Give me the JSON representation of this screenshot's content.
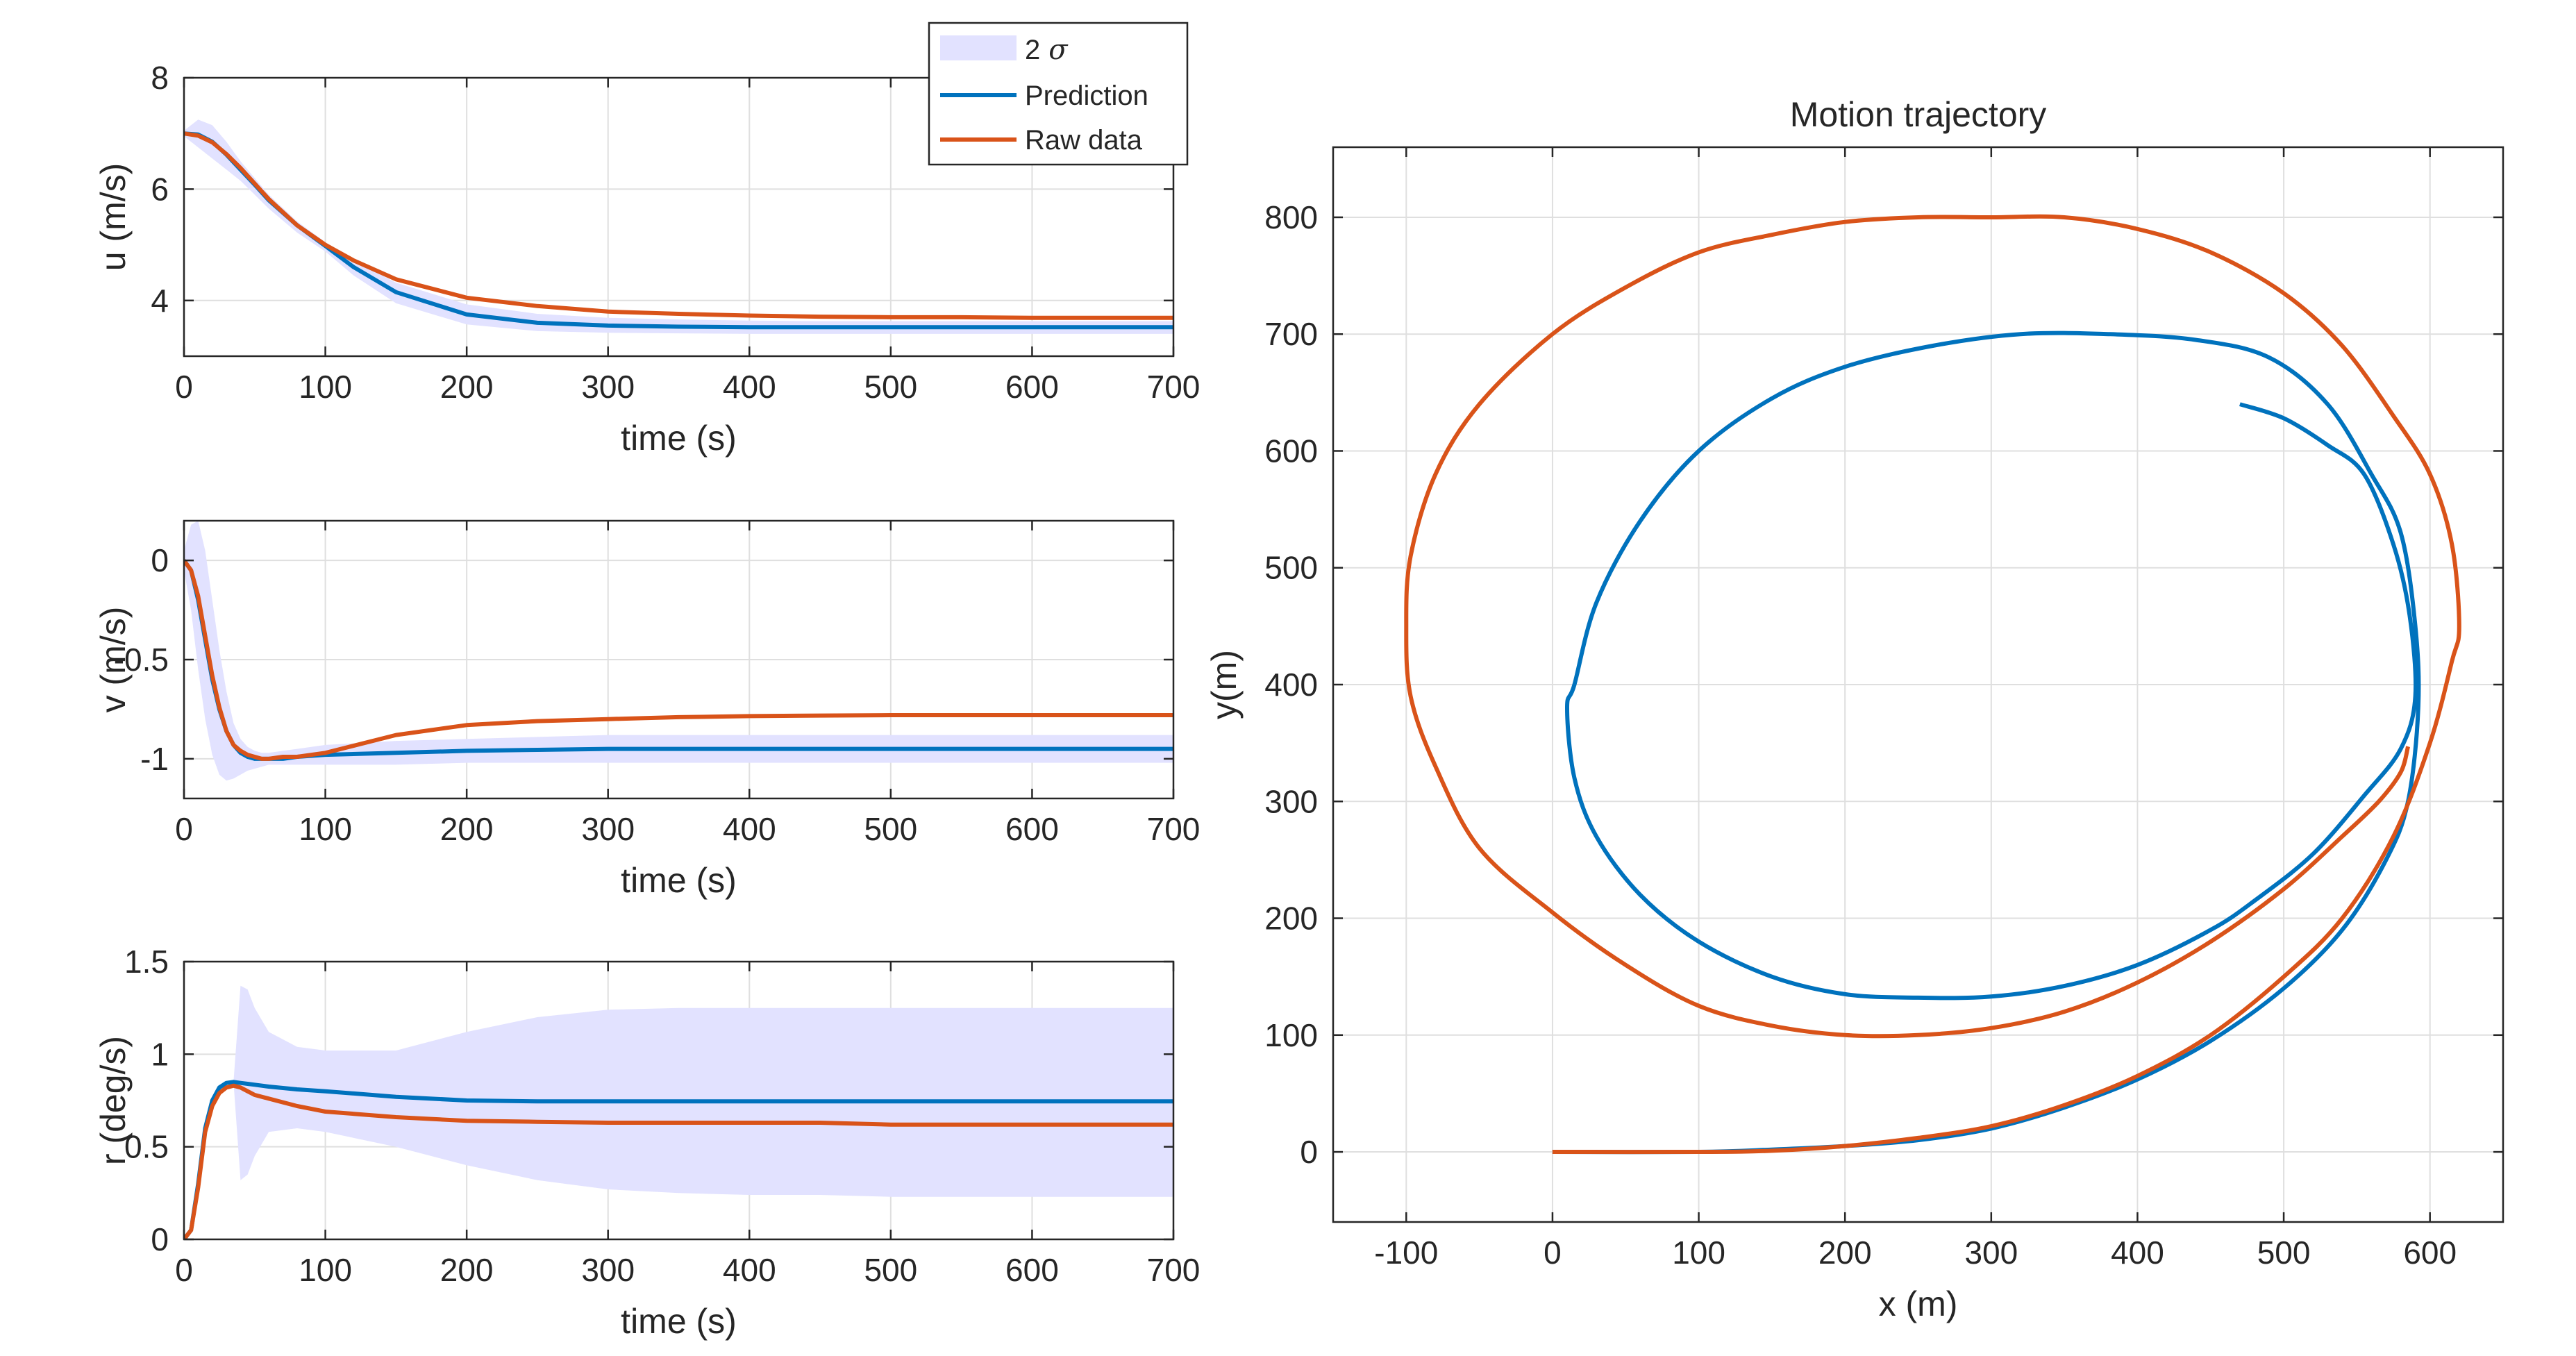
{
  "colors": {
    "prediction": "#0072BD",
    "raw": "#D95319",
    "band": "#E2E2FF",
    "grid": "#DFDFDF",
    "axis": "#262626"
  },
  "legend": {
    "band_label": "2",
    "band_symbol": "σ",
    "prediction_label": "Prediction",
    "raw_label": "Raw data"
  },
  "chart_data": [
    {
      "id": "u",
      "type": "line",
      "title": "",
      "xlabel": "time (s)",
      "ylabel": "u (m/s)",
      "xlim": [
        0,
        700
      ],
      "ylim": [
        3,
        8
      ],
      "xticks": [
        0,
        100,
        200,
        300,
        400,
        500,
        600,
        700
      ],
      "yticks": [
        4,
        6,
        8
      ],
      "x": [
        0,
        10,
        20,
        30,
        40,
        50,
        60,
        80,
        100,
        120,
        150,
        200,
        250,
        300,
        350,
        400,
        450,
        500,
        550,
        600,
        650,
        700
      ],
      "series": [
        {
          "name": "Prediction",
          "values": [
            7.0,
            6.98,
            6.85,
            6.62,
            6.35,
            6.08,
            5.8,
            5.35,
            4.98,
            4.6,
            4.15,
            3.75,
            3.6,
            3.55,
            3.53,
            3.52,
            3.52,
            3.52,
            3.52,
            3.52,
            3.52,
            3.52
          ]
        },
        {
          "name": "Raw data",
          "values": [
            7.0,
            6.96,
            6.84,
            6.63,
            6.38,
            6.1,
            5.82,
            5.35,
            5.0,
            4.72,
            4.38,
            4.05,
            3.9,
            3.8,
            3.76,
            3.73,
            3.71,
            3.7,
            3.7,
            3.69,
            3.69,
            3.69
          ]
        },
        {
          "name": "2 σ upper",
          "values": [
            7.05,
            7.25,
            7.15,
            6.85,
            6.5,
            6.2,
            5.9,
            5.42,
            5.05,
            4.72,
            4.32,
            3.93,
            3.76,
            3.69,
            3.66,
            3.64,
            3.63,
            3.63,
            3.63,
            3.63,
            3.63,
            3.63
          ]
        },
        {
          "name": "2 σ lower",
          "values": [
            6.95,
            6.75,
            6.55,
            6.35,
            6.15,
            5.9,
            5.65,
            5.22,
            4.88,
            4.45,
            3.95,
            3.57,
            3.45,
            3.42,
            3.41,
            3.4,
            3.4,
            3.4,
            3.4,
            3.4,
            3.4,
            3.4
          ]
        }
      ]
    },
    {
      "id": "v",
      "type": "line",
      "title": "",
      "xlabel": "time (s)",
      "ylabel": "v (m/s)",
      "xlim": [
        0,
        700
      ],
      "ylim": [
        -1.2,
        0.2
      ],
      "xticks": [
        0,
        100,
        200,
        300,
        400,
        500,
        600,
        700
      ],
      "yticks": [
        -1,
        -0.5,
        0
      ],
      "x": [
        0,
        5,
        10,
        15,
        20,
        25,
        30,
        35,
        40,
        45,
        50,
        55,
        60,
        70,
        80,
        100,
        150,
        200,
        250,
        300,
        350,
        400,
        450,
        500,
        550,
        600,
        650,
        700
      ],
      "series": [
        {
          "name": "Prediction",
          "values": [
            0,
            -0.05,
            -0.2,
            -0.4,
            -0.6,
            -0.75,
            -0.86,
            -0.93,
            -0.97,
            -0.99,
            -1.0,
            -1.0,
            -1.0,
            -1.0,
            -0.99,
            -0.98,
            -0.97,
            -0.96,
            -0.955,
            -0.95,
            -0.95,
            -0.95,
            -0.95,
            -0.95,
            -0.95,
            -0.95,
            -0.95,
            -0.95
          ]
        },
        {
          "name": "Raw data",
          "values": [
            0,
            -0.05,
            -0.18,
            -0.38,
            -0.58,
            -0.74,
            -0.86,
            -0.93,
            -0.96,
            -0.98,
            -0.99,
            -1.0,
            -1.0,
            -0.99,
            -0.99,
            -0.97,
            -0.88,
            -0.83,
            -0.81,
            -0.8,
            -0.79,
            -0.785,
            -0.782,
            -0.78,
            -0.78,
            -0.78,
            -0.78,
            -0.78
          ]
        },
        {
          "name": "2 σ upper",
          "values": [
            0.05,
            0.18,
            0.2,
            0.05,
            -0.2,
            -0.45,
            -0.66,
            -0.82,
            -0.9,
            -0.94,
            -0.96,
            -0.97,
            -0.97,
            -0.96,
            -0.95,
            -0.93,
            -0.91,
            -0.9,
            -0.89,
            -0.88,
            -0.88,
            -0.88,
            -0.88,
            -0.88,
            -0.88,
            -0.88,
            -0.88,
            -0.88
          ]
        },
        {
          "name": "2 σ lower",
          "values": [
            -0.05,
            -0.25,
            -0.55,
            -0.8,
            -0.98,
            -1.08,
            -1.11,
            -1.1,
            -1.08,
            -1.06,
            -1.05,
            -1.04,
            -1.03,
            -1.03,
            -1.03,
            -1.03,
            -1.03,
            -1.02,
            -1.02,
            -1.02,
            -1.02,
            -1.02,
            -1.02,
            -1.02,
            -1.02,
            -1.02,
            -1.02,
            -1.02
          ]
        }
      ]
    },
    {
      "id": "r",
      "type": "line",
      "title": "",
      "xlabel": "time (s)",
      "ylabel": "r (deg/s)",
      "xlim": [
        0,
        700
      ],
      "ylim": [
        0,
        1.5
      ],
      "xticks": [
        0,
        100,
        200,
        300,
        400,
        500,
        600,
        700
      ],
      "yticks": [
        0,
        0.5,
        1,
        1.5
      ],
      "x": [
        0,
        5,
        10,
        15,
        20,
        25,
        30,
        35,
        40,
        45,
        50,
        60,
        80,
        100,
        150,
        200,
        250,
        300,
        350,
        400,
        450,
        500,
        550,
        600,
        650,
        700
      ],
      "series": [
        {
          "name": "Prediction",
          "values": [
            0,
            0.05,
            0.3,
            0.6,
            0.75,
            0.82,
            0.845,
            0.85,
            0.845,
            0.84,
            0.835,
            0.825,
            0.81,
            0.8,
            0.77,
            0.75,
            0.745,
            0.745,
            0.745,
            0.745,
            0.745,
            0.745,
            0.745,
            0.745,
            0.745,
            0.745
          ]
        },
        {
          "name": "Raw data",
          "values": [
            0,
            0.05,
            0.28,
            0.58,
            0.72,
            0.79,
            0.82,
            0.83,
            0.82,
            0.8,
            0.78,
            0.76,
            0.72,
            0.69,
            0.66,
            0.64,
            0.635,
            0.63,
            0.63,
            0.63,
            0.63,
            0.62,
            0.62,
            0.62,
            0.62,
            0.62
          ]
        },
        {
          "name": "2 σ upper",
          "values": [
            null,
            null,
            null,
            null,
            null,
            null,
            null,
            0.85,
            1.37,
            1.35,
            1.25,
            1.12,
            1.04,
            1.02,
            1.02,
            1.12,
            1.2,
            1.24,
            1.25,
            1.25,
            1.25,
            1.25,
            1.25,
            1.25,
            1.25,
            1.25
          ]
        },
        {
          "name": "2 σ lower",
          "values": [
            null,
            null,
            null,
            null,
            null,
            null,
            null,
            0.85,
            0.32,
            0.35,
            0.45,
            0.58,
            0.6,
            0.58,
            0.5,
            0.4,
            0.32,
            0.27,
            0.25,
            0.24,
            0.24,
            0.23,
            0.23,
            0.23,
            0.23,
            0.23
          ]
        }
      ]
    },
    {
      "id": "trajectory",
      "type": "line",
      "title": "Motion trajectory",
      "xlabel": "x (m)",
      "ylabel": "y(m)",
      "xlim": [
        -150,
        650
      ],
      "ylim": [
        -60,
        860
      ],
      "xticks": [
        -100,
        0,
        100,
        200,
        300,
        400,
        500,
        600
      ],
      "yticks": [
        0,
        100,
        200,
        300,
        400,
        500,
        600,
        700,
        800
      ],
      "series": [
        {
          "name": "Prediction",
          "x": [
            0,
            100,
            150,
            200,
            250,
            300,
            350,
            400,
            450,
            500,
            540,
            570,
            585,
            592,
            590,
            580,
            560,
            530,
            490,
            440,
            380,
            320,
            260,
            200,
            150,
            100,
            60,
            30,
            15,
            10,
            15,
            30,
            60,
            100,
            150,
            200,
            250,
            300,
            350,
            400,
            450,
            480,
            520,
            555,
            580,
            590,
            586,
            575,
            555,
            530,
            500,
            470
          ],
          "y": [
            0,
            0,
            2,
            5,
            10,
            20,
            38,
            62,
            95,
            140,
            190,
            250,
            300,
            380,
            450,
            530,
            580,
            640,
            680,
            695,
            700,
            700,
            690,
            672,
            645,
            600,
            540,
            470,
            400,
            380,
            320,
            270,
            220,
            180,
            150,
            135,
            132,
            133,
            142,
            160,
            190,
            215,
            255,
            305,
            345,
            390,
            460,
            520,
            580,
            605,
            628,
            640
          ]
        },
        {
          "name": "Raw data",
          "x": [
            0,
            100,
            150,
            200,
            250,
            300,
            350,
            400,
            450,
            500,
            540,
            575,
            600,
            615,
            620,
            615,
            600,
            575,
            540,
            500,
            450,
            400,
            350,
            300,
            250,
            200,
            150,
            100,
            50,
            0,
            -50,
            -80,
            -97,
            -100,
            -97,
            -80,
            -50,
            0,
            50,
            100,
            150,
            200,
            250,
            300,
            350,
            400,
            450,
            500,
            540,
            565,
            580,
            585
          ],
          "y": [
            0,
            0,
            1,
            5,
            12,
            22,
            40,
            65,
            100,
            150,
            200,
            270,
            350,
            420,
            450,
            520,
            580,
            630,
            690,
            735,
            770,
            790,
            800,
            800,
            800,
            796,
            785,
            770,
            740,
            700,
            640,
            580,
            510,
            450,
            390,
            330,
            260,
            205,
            160,
            125,
            108,
            100,
            100,
            106,
            120,
            145,
            180,
            225,
            270,
            300,
            325,
            347
          ]
        }
      ]
    }
  ]
}
